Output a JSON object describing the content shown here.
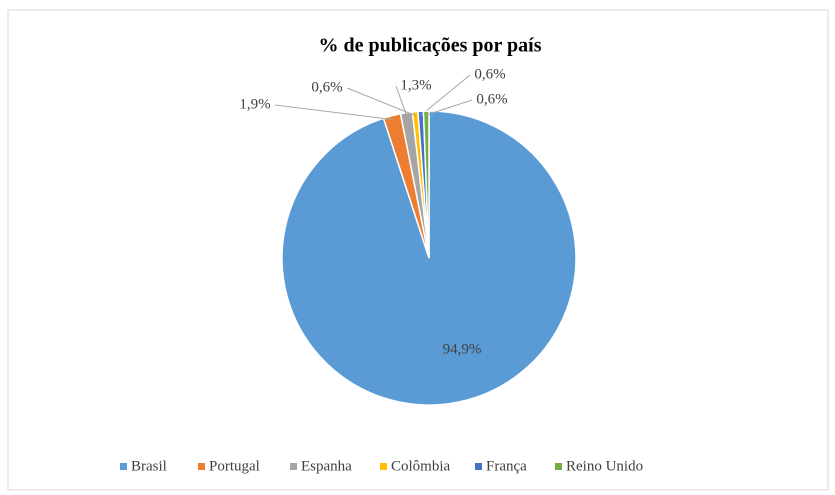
{
  "chart_data": {
    "type": "pie",
    "title": "% de publicações por país",
    "categories": [
      "Brasil",
      "Portugal",
      "Espanha",
      "Colômbia",
      "França",
      "Reino Unido"
    ],
    "values": [
      94.9,
      1.9,
      1.3,
      0.6,
      0.6,
      0.6
    ],
    "value_labels": [
      "94,9%",
      "1,9%",
      "1,3%",
      "0,6%",
      "0,6%",
      "0,6%"
    ],
    "colors": [
      "#5b9bd5",
      "#ed7d31",
      "#a5a5a5",
      "#ffc000",
      "#4472c4",
      "#70ad47"
    ],
    "legend": "bottom"
  }
}
